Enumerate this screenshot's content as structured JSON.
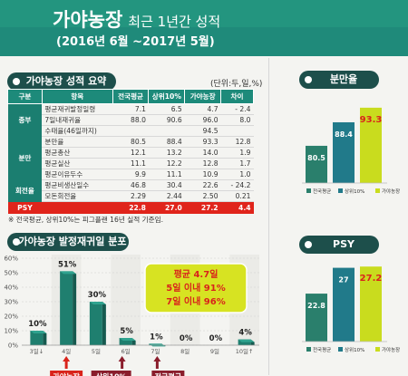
{
  "header": {
    "title": "가야농장",
    "title_sub": "최근 1년간 성적",
    "period": "(2016년 6월 ~2017년 5월)"
  },
  "summary": {
    "title": "가야농장 성적 요약",
    "unit": "(단위:두,일,%)",
    "columns": [
      "구분",
      "항목",
      "전국평균",
      "상위10%",
      "가야농장",
      "차이"
    ],
    "rows": [
      {
        "cat": "종부",
        "item": "평균재귀발정일령",
        "avg": "7.1",
        "top": "6.5",
        "farm": "4.7",
        "diff": "- 2.4"
      },
      {
        "cat": "",
        "item": "7일내재귀율",
        "avg": "88.0",
        "top": "90.6",
        "farm": "96.0",
        "diff": "8.0"
      },
      {
        "cat": "",
        "item": "수태율(46일까지)",
        "avg": "",
        "top": "",
        "farm": "94.5",
        "diff": ""
      },
      {
        "cat": "분만",
        "item": "분만율",
        "avg": "80.5",
        "top": "88.4",
        "farm": "93.3",
        "diff": "12.8"
      },
      {
        "cat": "",
        "item": "평균총산",
        "avg": "12.1",
        "top": "13.2",
        "farm": "14.0",
        "diff": "1.9"
      },
      {
        "cat": "",
        "item": "평균실산",
        "avg": "11.1",
        "top": "12.2",
        "farm": "12.8",
        "diff": "1.7"
      },
      {
        "cat": "",
        "item": "평균이유두수",
        "avg": "9.9",
        "top": "11.1",
        "farm": "10.9",
        "diff": "1.0"
      },
      {
        "cat": "회전율",
        "item": "평균비생산일수",
        "avg": "46.8",
        "top": "30.4",
        "farm": "22.6",
        "diff": "- 24.2"
      },
      {
        "cat": "",
        "item": "모돈회전율",
        "avg": "2.29",
        "top": "2.44",
        "farm": "2.50",
        "diff": "0.21"
      }
    ],
    "psy_row": {
      "label": "PSY",
      "avg": "22.8",
      "top": "27.0",
      "farm": "27.2",
      "diff": "4.4"
    },
    "note": "※ 전국평균, 상위10%는 피그플랜 16년 실적 기준임."
  },
  "colors": {
    "teal": "#1d8a7a",
    "dark_teal": "#1d4f4b",
    "red": "#e0241b",
    "avg_bar": "#2a7f6c",
    "top_bar": "#217a8a",
    "farm_bar": "#c9dc1e"
  },
  "chart_data": [
    {
      "type": "bar",
      "title": "가야농장 발정재귀일 분포",
      "categories": [
        "3일↓",
        "4일",
        "5일",
        "6일",
        "7일",
        "8일",
        "9일",
        "10일↑"
      ],
      "values": [
        10,
        51,
        30,
        5,
        1,
        0,
        0,
        4
      ],
      "value_labels": [
        "10%",
        "51%",
        "30%",
        "5%",
        "1%",
        "0%",
        "0%",
        "4%"
      ],
      "ylim": [
        0,
        60
      ],
      "yticks": [
        "0%",
        "10%",
        "20%",
        "30%",
        "40%",
        "50%",
        "60%"
      ],
      "grid": true,
      "callout": [
        "평균 4.7일",
        "5일 이내 91%",
        "7일 이내 96%"
      ],
      "markers": [
        {
          "category": "4일",
          "label": "가야농장"
        },
        {
          "category": "6일",
          "label": "상위10%"
        },
        {
          "category": "7일",
          "label": "전국평균"
        }
      ]
    },
    {
      "type": "bar",
      "title": "분만율",
      "categories": [
        "전국평균",
        "상위10%",
        "가야농장"
      ],
      "values": [
        80.5,
        88.4,
        93.3
      ],
      "legend": [
        "전국평균",
        "상위10%",
        "가야농장"
      ],
      "legend_position": "bottom"
    },
    {
      "type": "bar",
      "title": "PSY",
      "categories": [
        "전국평균",
        "상위10%",
        "가야농장"
      ],
      "values": [
        22.8,
        27.0,
        27.2
      ],
      "legend": [
        "전국평균",
        "상위10%",
        "가야농장"
      ],
      "legend_position": "bottom"
    }
  ]
}
